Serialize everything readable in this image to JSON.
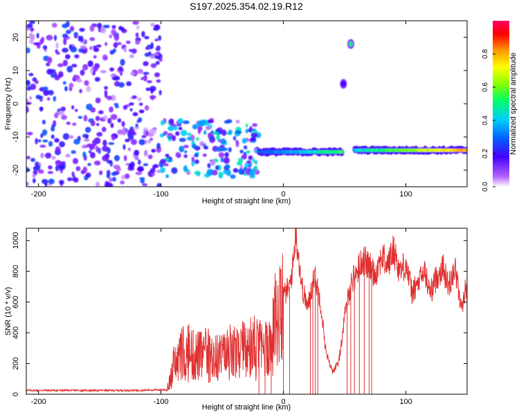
{
  "title": "S197.2025.354.02.19.R12",
  "chart_data": [
    {
      "type": "heatmap",
      "title": "S197.2025.354.02.19.R12",
      "xlabel": "Height of straight line (km)",
      "ylabel": "Frequency (Hz)",
      "xlim": [
        -210,
        150
      ],
      "ylim": [
        -25,
        25
      ],
      "x_ticks": [
        -200,
        -100,
        0,
        100
      ],
      "y_ticks": [
        -20,
        -10,
        0,
        10,
        20
      ],
      "colorbar": {
        "label": "Normalized spectral amplitude",
        "range": [
          0,
          1
        ],
        "ticks": [
          0.0,
          0.2,
          0.4,
          0.6,
          0.8
        ],
        "colors": [
          "#ffffff",
          "#9933ff",
          "#4400ff",
          "#0066ff",
          "#00ccff",
          "#00ff66",
          "#88ff00",
          "#ffff00",
          "#ff9900",
          "#ff0000",
          "#ff0066"
        ]
      },
      "features": [
        {
          "name": "broadband noise",
          "x_range": [
            -210,
            -100
          ],
          "y_range": [
            -25,
            25
          ],
          "amplitude": 0.25
        },
        {
          "name": "scattered band",
          "x_range": [
            -100,
            -20
          ],
          "y_range": [
            -22,
            -5
          ],
          "amplitude": 0.4
        },
        {
          "name": "tone",
          "x_range": [
            -20,
            48
          ],
          "y": -14.5,
          "amplitude": 0.5
        },
        {
          "name": "tone",
          "x_range": [
            58,
            150
          ],
          "y": -14,
          "amplitude": 0.75
        },
        {
          "name": "isolated spot",
          "x": 55,
          "y": 18,
          "amplitude": 0.5
        },
        {
          "name": "isolated spot",
          "x": 49,
          "y": 6,
          "amplitude": 0.2
        }
      ]
    },
    {
      "type": "line",
      "xlabel": "Height of straight line (km)",
      "ylabel": "SNR (10 * v/v)",
      "xlim": [
        -210,
        150
      ],
      "ylim": [
        0,
        1080
      ],
      "x_ticks": [
        -200,
        -100,
        0,
        100
      ],
      "y_ticks": [
        0,
        200,
        400,
        600,
        800,
        1000
      ],
      "color": "#e03030",
      "series": [
        {
          "name": "SNR",
          "x": [
            -210,
            -180,
            -150,
            -120,
            -95,
            -88,
            -80,
            -70,
            -60,
            -50,
            -40,
            -30,
            -20,
            -10,
            0,
            5,
            8,
            10,
            15,
            20,
            25,
            30,
            35,
            40,
            45,
            50,
            55,
            60,
            65,
            70,
            75,
            80,
            85,
            90,
            95,
            100,
            105,
            110,
            115,
            120,
            125,
            130,
            135,
            140,
            145,
            150
          ],
          "values": [
            25,
            25,
            25,
            25,
            30,
            200,
            250,
            250,
            230,
            240,
            250,
            260,
            280,
            330,
            640,
            700,
            850,
            1080,
            700,
            560,
            780,
            620,
            260,
            150,
            200,
            500,
            720,
            800,
            880,
            830,
            780,
            900,
            840,
            940,
            800,
            850,
            660,
            720,
            800,
            660,
            760,
            830,
            700,
            840,
            560,
            720
          ]
        }
      ],
      "dropouts_x": [
        -20,
        -15,
        -10,
        0,
        5,
        22,
        24,
        26,
        28,
        52,
        55,
        58,
        62,
        66,
        70,
        72
      ]
    }
  ]
}
